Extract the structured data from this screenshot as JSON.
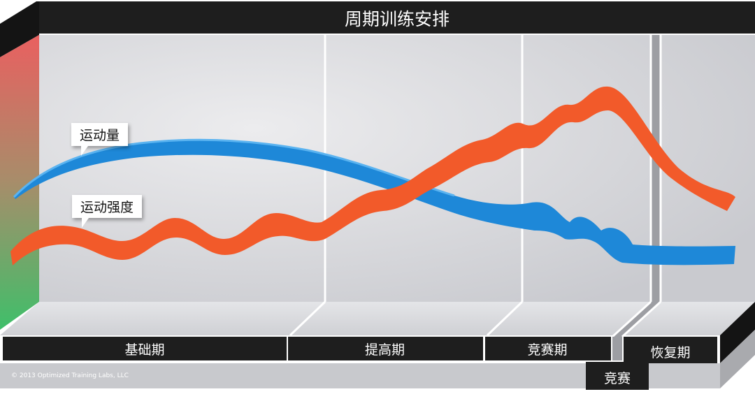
{
  "title": "周期训练安排",
  "curves": {
    "volume": {
      "label": "运动量",
      "color": "#1e88d8"
    },
    "intensity": {
      "label": "运动强度",
      "color": "#f25a2a"
    }
  },
  "phases": [
    {
      "id": "base",
      "label": "基础期"
    },
    {
      "id": "build",
      "label": "提高期"
    },
    {
      "id": "competition",
      "label": "竞赛期"
    },
    {
      "id": "recovery",
      "label": "恢复期"
    }
  ],
  "event_label": "竞赛",
  "copyright": "© 2013 Optimized Training Labs, LLC",
  "colors": {
    "bar": "#1e1e1e",
    "panel": "#d6d7db",
    "gradient_top": "#e96060",
    "gradient_bottom": "#3fbf6a"
  }
}
